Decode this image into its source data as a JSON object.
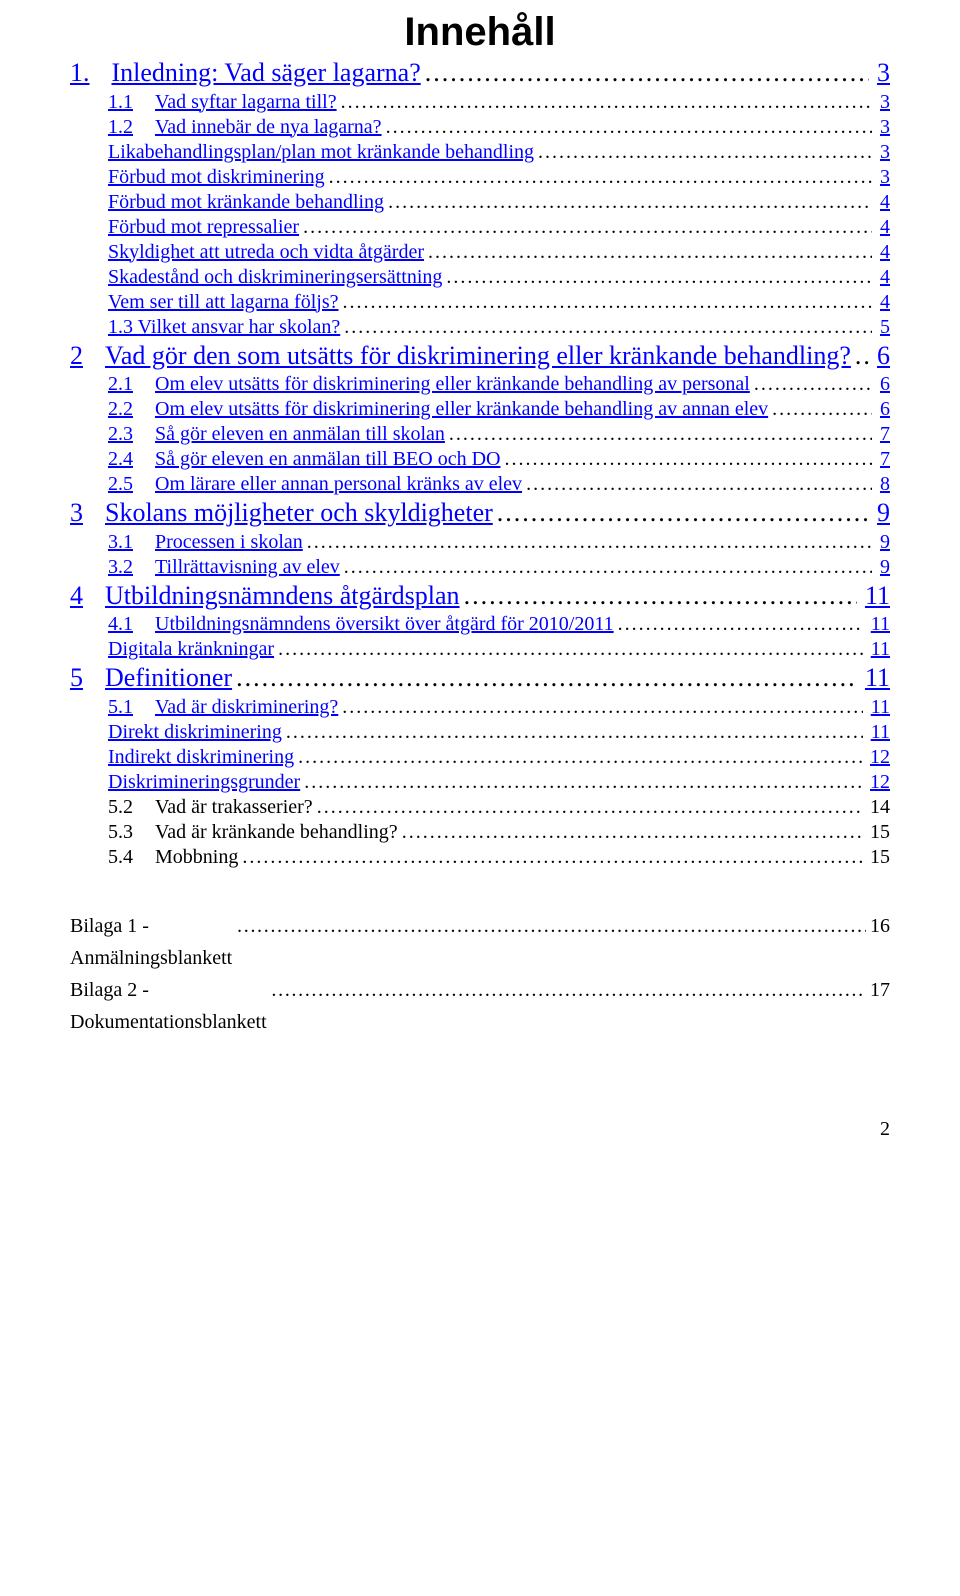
{
  "title": "Innehåll",
  "entries": [
    {
      "level": 1,
      "style": "num",
      "link": true,
      "num": "1.",
      "text": "Inledning: Vad säger lagarna?",
      "page": "3"
    },
    {
      "level": 2,
      "style": "num",
      "link": true,
      "num": "1.1",
      "text": "Vad syftar lagarna till?",
      "page": "3"
    },
    {
      "level": 2,
      "style": "num",
      "link": true,
      "num": "1.2",
      "text": "Vad innebär de nya lagarna?",
      "page": "3"
    },
    {
      "level": 2,
      "style": "text",
      "link": true,
      "text": "Likabehandlingsplan/plan mot kränkande behandling",
      "page": "3"
    },
    {
      "level": 2,
      "style": "text",
      "link": true,
      "text": "Förbud mot diskriminering",
      "page": "3"
    },
    {
      "level": 2,
      "style": "text",
      "link": true,
      "text": "Förbud mot kränkande behandling",
      "page": "4"
    },
    {
      "level": 2,
      "style": "text",
      "link": true,
      "text": "Förbud mot repressalier",
      "page": "4"
    },
    {
      "level": 2,
      "style": "text",
      "link": true,
      "text": "Skyldighet att utreda och vidta åtgärder",
      "page": "4"
    },
    {
      "level": 2,
      "style": "text",
      "link": true,
      "text": "Skadestånd och diskrimineringsersättning",
      "page": "4"
    },
    {
      "level": 2,
      "style": "text",
      "link": true,
      "text": "Vem ser till att lagarna följs?",
      "page": "4"
    },
    {
      "level": 2,
      "style": "text",
      "link": true,
      "text": "1.3 Vilket ansvar har skolan?",
      "page": "5"
    },
    {
      "level": 1,
      "style": "num",
      "link": true,
      "num": "2",
      "text": "Vad gör den som utsätts för diskriminering eller kränkande behandling?",
      "page": "6"
    },
    {
      "level": 2,
      "style": "num",
      "link": true,
      "num": "2.1",
      "text": "Om elev utsätts för diskriminering eller kränkande behandling av personal",
      "page": "6"
    },
    {
      "level": 2,
      "style": "num",
      "link": true,
      "num": "2.2",
      "text": "Om elev utsätts för diskriminering eller kränkande behandling av annan elev",
      "page": "6"
    },
    {
      "level": 2,
      "style": "num",
      "link": true,
      "num": "2.3",
      "text": "Så gör eleven en anmälan till skolan",
      "page": "7"
    },
    {
      "level": 2,
      "style": "num",
      "link": true,
      "num": "2.4",
      "text": "Så gör eleven en anmälan till BEO och DO",
      "page": "7"
    },
    {
      "level": 2,
      "style": "num",
      "link": true,
      "num": "2.5",
      "text": "Om lärare eller annan personal kränks av elev",
      "page": "8"
    },
    {
      "level": 1,
      "style": "num",
      "link": true,
      "num": "3",
      "text": "Skolans möjligheter och skyldigheter",
      "page": "9"
    },
    {
      "level": 2,
      "style": "num",
      "link": true,
      "num": "3.1",
      "text": "Processen i skolan",
      "page": "9"
    },
    {
      "level": 2,
      "style": "num",
      "link": true,
      "num": "3.2",
      "text": "Tillrättavisning av elev",
      "page": "9"
    },
    {
      "level": 1,
      "style": "num",
      "link": true,
      "num": "4",
      "text": "Utbildningsnämndens åtgärdsplan",
      "page": "11"
    },
    {
      "level": 2,
      "style": "num",
      "link": true,
      "num": "4.1",
      "text": "Utbildningsnämndens översikt över åtgärd för 2010/2011",
      "page": "11"
    },
    {
      "level": 2,
      "style": "text",
      "link": true,
      "text": "Digitala kränkningar",
      "page": "11"
    },
    {
      "level": 1,
      "style": "num",
      "link": true,
      "num": "5",
      "text": "Definitioner",
      "page": "11"
    },
    {
      "level": 2,
      "style": "num",
      "link": true,
      "num": "5.1",
      "text": "Vad är diskriminering?",
      "page": "11"
    },
    {
      "level": 2,
      "style": "text",
      "link": true,
      "text": "Direkt diskriminering",
      "page": "11"
    },
    {
      "level": 2,
      "style": "text",
      "link": true,
      "text": "Indirekt diskriminering",
      "page": "12"
    },
    {
      "level": 2,
      "style": "text",
      "link": true,
      "text": "Diskrimineringsgrunder",
      "page": "12"
    },
    {
      "level": 2,
      "style": "num",
      "link": false,
      "num": "5.2",
      "text": "Vad är trakasserier?",
      "page": "14"
    },
    {
      "level": 2,
      "style": "num",
      "link": false,
      "num": "5.3",
      "text": "Vad är kränkande behandling?",
      "page": "15"
    },
    {
      "level": 2,
      "style": "num",
      "link": false,
      "num": "5.4",
      "text": "Mobbning",
      "page": "15"
    }
  ],
  "appendices": [
    {
      "text": "Bilaga 1 - Anmälningsblankett",
      "page": "16"
    },
    {
      "text": "Bilaga 2 - Dokumentationsblankett",
      "page": "17"
    }
  ],
  "page_number": "2",
  "colors": {
    "link": "#0000ff",
    "text": "#000000",
    "bg": "#ffffff"
  }
}
